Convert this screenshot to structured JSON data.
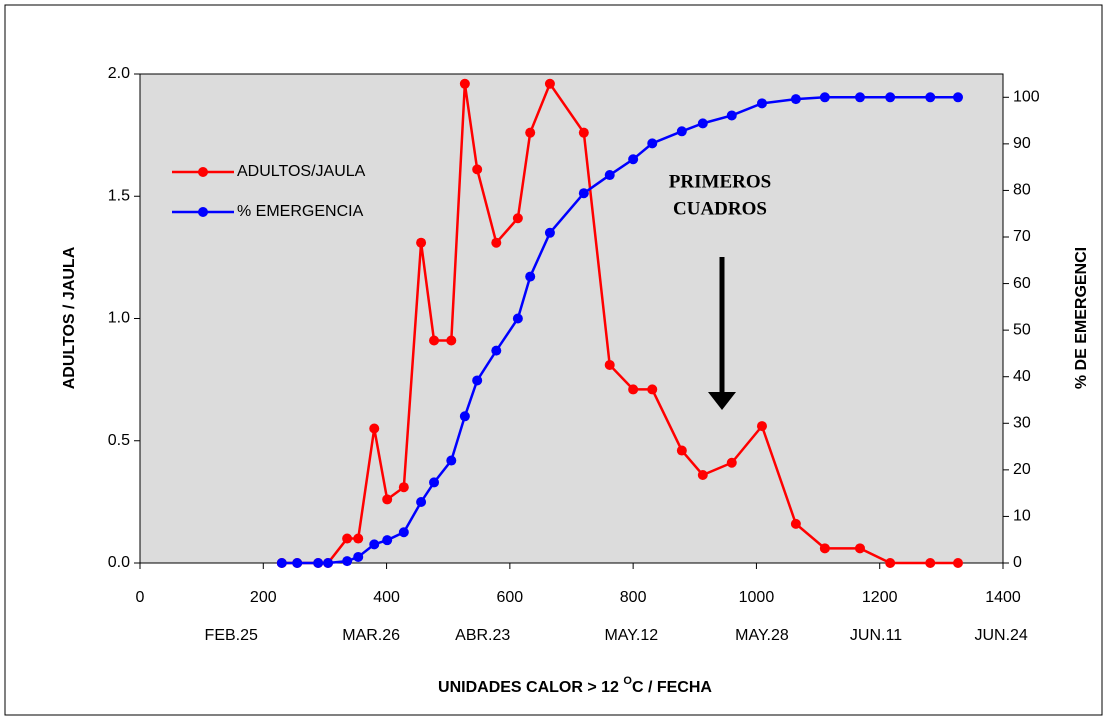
{
  "chart_data": {
    "type": "line",
    "xlabel": [
      "UNIDADES CALOR > 12 ",
      "O",
      "C / FECHA"
    ],
    "ylabel": "ADULTOS / JAULA",
    "y2label": "% DE EMERGENCI",
    "annotation": [
      "PRIMEROS",
      "CUADROS"
    ],
    "x": [
      230,
      255,
      289,
      305,
      336,
      354,
      380,
      401,
      428,
      456,
      477,
      505,
      527,
      547,
      578,
      613,
      633,
      665,
      720,
      762,
      800,
      831,
      879,
      913,
      960,
      1009,
      1064,
      1111,
      1168,
      1217,
      1282,
      1327
    ],
    "series": [
      {
        "name": "ADULTOS/JAULA",
        "color": "#ff0000",
        "values": [
          0,
          0,
          0,
          0,
          0.1,
          0.1,
          0.55,
          0.26,
          0.31,
          1.31,
          0.91,
          0.91,
          1.96,
          1.61,
          1.31,
          1.41,
          1.76,
          1.96,
          1.76,
          0.81,
          0.71,
          0.71,
          0.46,
          0.36,
          0.41,
          0.56,
          0.16,
          0.06,
          0.06,
          0,
          0,
          0
        ]
      },
      {
        "name": "% EMERGENCIA",
        "color": "#0000ff",
        "axis": "y2",
        "values": [
          0,
          0,
          0,
          0,
          0.4,
          1.3,
          4.0,
          4.9,
          6.6,
          13.1,
          17.3,
          22.0,
          31.5,
          39.2,
          45.6,
          52.5,
          61.5,
          70.9,
          79.4,
          83.3,
          86.7,
          90.1,
          92.7,
          94.4,
          96.1,
          98.7,
          99.6,
          100,
          100,
          100,
          100,
          100
        ]
      }
    ],
    "xlim": [
      0,
      1400
    ],
    "xticks": [
      0,
      200,
      400,
      600,
      800,
      1000,
      1200,
      1400
    ],
    "date_ticks": [
      {
        "value": 148,
        "label": "FEB.25"
      },
      {
        "value": 375,
        "label": "MAR.26"
      },
      {
        "value": 556,
        "label": "ABR.23"
      },
      {
        "value": 797,
        "label": "MAY.12"
      },
      {
        "value": 1009,
        "label": "MAY.28"
      },
      {
        "value": 1194,
        "label": "JUN.11"
      },
      {
        "value": 1397,
        "label": "JUN.24"
      }
    ],
    "ylim": [
      0,
      2
    ],
    "yticks": [
      {
        "value": 0,
        "label": "0.0"
      },
      0.5,
      {
        "value": 1,
        "label": "1.0"
      },
      1.5,
      {
        "value": 2,
        "label": "2.0"
      }
    ],
    "y2lim": [
      0,
      105
    ],
    "y2ticks": [
      0,
      10,
      20,
      30,
      40,
      50,
      60,
      70,
      80,
      90,
      100
    ],
    "grid": false,
    "legend": "upper left"
  }
}
